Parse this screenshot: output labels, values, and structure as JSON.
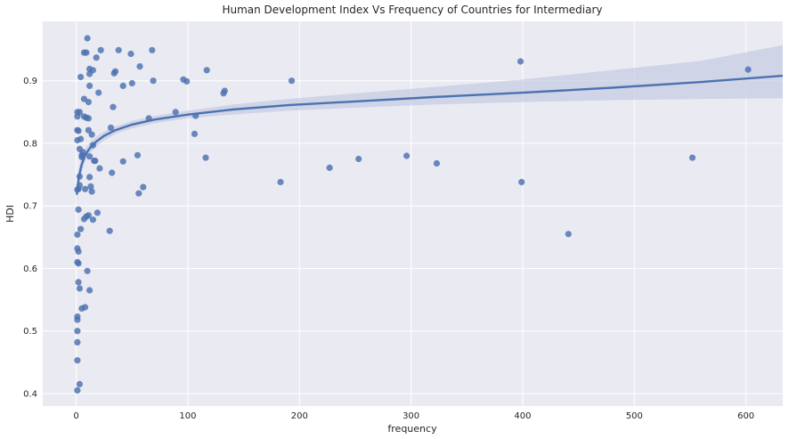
{
  "chart_data": {
    "type": "scatter",
    "title": "Human Development Index Vs Frequency of Countries for Intermediary",
    "xlabel": "frequency",
    "ylabel": "HDI",
    "xlim": [
      -30,
      633
    ],
    "ylim": [
      0.38,
      0.995
    ],
    "xticks": [
      0,
      100,
      200,
      300,
      400,
      500,
      600
    ],
    "yticks": [
      0.4,
      0.5,
      0.6,
      0.7,
      0.8,
      0.9
    ],
    "grid": true,
    "legend": "none",
    "colors": {
      "background": "#eaeaf2",
      "grid": "#ffffff",
      "point": "#4c72b0",
      "fit": "#4c72b0",
      "band": "#c0c8e0"
    },
    "points": [
      [
        10,
        0.968
      ],
      [
        22,
        0.949
      ],
      [
        38,
        0.949
      ],
      [
        68,
        0.949
      ],
      [
        7,
        0.945
      ],
      [
        9,
        0.945
      ],
      [
        49,
        0.943
      ],
      [
        18,
        0.937
      ],
      [
        57,
        0.923
      ],
      [
        12,
        0.919
      ],
      [
        15,
        0.917
      ],
      [
        35,
        0.915
      ],
      [
        34,
        0.912
      ],
      [
        12,
        0.911
      ],
      [
        117,
        0.917
      ],
      [
        398,
        0.931
      ],
      [
        602,
        0.918
      ],
      [
        4,
        0.906
      ],
      [
        96,
        0.902
      ],
      [
        99,
        0.899
      ],
      [
        193,
        0.9
      ],
      [
        69,
        0.9
      ],
      [
        50,
        0.896
      ],
      [
        42,
        0.892
      ],
      [
        12,
        0.892
      ],
      [
        133,
        0.884
      ],
      [
        132,
        0.88
      ],
      [
        20,
        0.881
      ],
      [
        7,
        0.871
      ],
      [
        11,
        0.866
      ],
      [
        33,
        0.858
      ],
      [
        1,
        0.85
      ],
      [
        3,
        0.85
      ],
      [
        89,
        0.85
      ],
      [
        1,
        0.843
      ],
      [
        7,
        0.843
      ],
      [
        9,
        0.841
      ],
      [
        11,
        0.84
      ],
      [
        65,
        0.84
      ],
      [
        107,
        0.844
      ],
      [
        31,
        0.825
      ],
      [
        1,
        0.821
      ],
      [
        2,
        0.82
      ],
      [
        11,
        0.821
      ],
      [
        106,
        0.815
      ],
      [
        14,
        0.814
      ],
      [
        1,
        0.805
      ],
      [
        4,
        0.807
      ],
      [
        3,
        0.791
      ],
      [
        15,
        0.797
      ],
      [
        6,
        0.786
      ],
      [
        5,
        0.781
      ],
      [
        55,
        0.781
      ],
      [
        116,
        0.777
      ],
      [
        5,
        0.778
      ],
      [
        12,
        0.779
      ],
      [
        17,
        0.772
      ],
      [
        42,
        0.771
      ],
      [
        16,
        0.772
      ],
      [
        253,
        0.775
      ],
      [
        296,
        0.78
      ],
      [
        552,
        0.777
      ],
      [
        227,
        0.761
      ],
      [
        323,
        0.768
      ],
      [
        21,
        0.76
      ],
      [
        32,
        0.753
      ],
      [
        3,
        0.747
      ],
      [
        12,
        0.746
      ],
      [
        183,
        0.738
      ],
      [
        399,
        0.738
      ],
      [
        3,
        0.733
      ],
      [
        13,
        0.731
      ],
      [
        60,
        0.73
      ],
      [
        1,
        0.726
      ],
      [
        2,
        0.727
      ],
      [
        8,
        0.727
      ],
      [
        14,
        0.723
      ],
      [
        56,
        0.72
      ],
      [
        2,
        0.694
      ],
      [
        19,
        0.689
      ],
      [
        11,
        0.685
      ],
      [
        9,
        0.683
      ],
      [
        7,
        0.679
      ],
      [
        15,
        0.678
      ],
      [
        4,
        0.663
      ],
      [
        30,
        0.66
      ],
      [
        441,
        0.655
      ],
      [
        1,
        0.654
      ],
      [
        1,
        0.632
      ],
      [
        2,
        0.627
      ],
      [
        1,
        0.61
      ],
      [
        2,
        0.608
      ],
      [
        10,
        0.596
      ],
      [
        2,
        0.578
      ],
      [
        3,
        0.568
      ],
      [
        12,
        0.565
      ],
      [
        8,
        0.538
      ],
      [
        5,
        0.536
      ],
      [
        1,
        0.523
      ],
      [
        1,
        0.518
      ],
      [
        1,
        0.5
      ],
      [
        1,
        0.482
      ],
      [
        1,
        0.453
      ],
      [
        3,
        0.415
      ],
      [
        1,
        0.405
      ]
    ],
    "fit": {
      "x": [
        0.5,
        1,
        2,
        3,
        5,
        8,
        12,
        18,
        25,
        35,
        50,
        70,
        100,
        140,
        190,
        250,
        320,
        400,
        480,
        560,
        633
      ],
      "y": [
        0.718,
        0.728,
        0.741,
        0.752,
        0.767,
        0.781,
        0.792,
        0.803,
        0.812,
        0.821,
        0.83,
        0.838,
        0.846,
        0.854,
        0.861,
        0.867,
        0.874,
        0.881,
        0.889,
        0.898,
        0.908
      ],
      "lower": [
        0.698,
        0.71,
        0.726,
        0.738,
        0.755,
        0.771,
        0.783,
        0.795,
        0.805,
        0.815,
        0.824,
        0.832,
        0.84,
        0.846,
        0.852,
        0.857,
        0.862,
        0.866,
        0.869,
        0.871,
        0.872
      ],
      "upper": [
        0.738,
        0.746,
        0.757,
        0.766,
        0.779,
        0.791,
        0.801,
        0.811,
        0.819,
        0.827,
        0.836,
        0.844,
        0.852,
        0.862,
        0.871,
        0.88,
        0.89,
        0.902,
        0.917,
        0.932,
        0.957
      ]
    }
  }
}
